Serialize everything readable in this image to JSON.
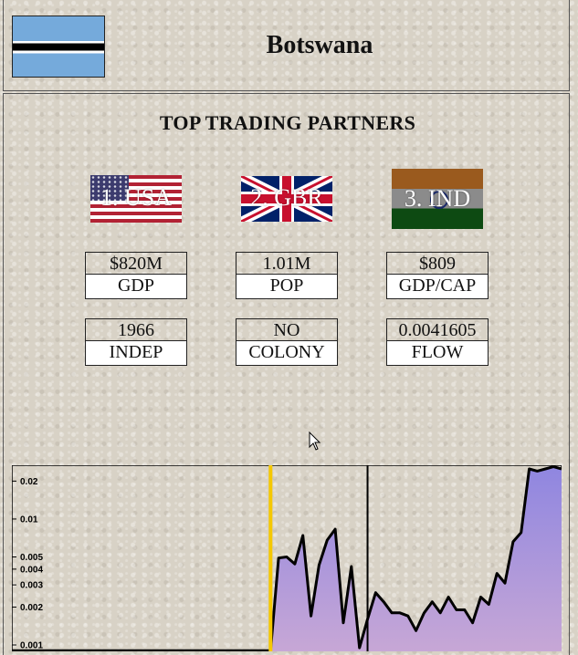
{
  "country": {
    "name": "Botswana",
    "flag_icon": "botswana-flag-icon"
  },
  "section": {
    "title": "TOP TRADING PARTNERS"
  },
  "partners": [
    {
      "label": "1. USA",
      "flag_icon": "usa-flag-icon"
    },
    {
      "label": "2. GBR",
      "flag_icon": "uk-flag-icon"
    },
    {
      "label": "3. IND",
      "flag_icon": "india-flag-icon"
    }
  ],
  "stats": [
    {
      "value": "$820M",
      "label": "GDP"
    },
    {
      "value": "1.01M",
      "label": "POP"
    },
    {
      "value": "$809",
      "label": "GDP/CAP"
    },
    {
      "value": "1966",
      "label": "INDEP"
    },
    {
      "value": "NO",
      "label": "COLONY"
    },
    {
      "value": "0.0041605",
      "label": "FLOW"
    }
  ],
  "colors": {
    "fill_top": "#8f86e0",
    "fill_bottom": "#c7a7d6",
    "highlight_line": "#f5c800",
    "line": "#000000"
  },
  "chart_data": {
    "type": "area",
    "yscale": "log",
    "ylim": [
      0.001,
      0.025
    ],
    "yticks": [
      "0.02",
      "0.01",
      "0.005",
      "0.004",
      "0.003",
      "0.002",
      "0.001"
    ],
    "ytick_values": [
      0.02,
      0.01,
      0.005,
      0.004,
      0.003,
      0.002,
      0.001
    ],
    "series_values": [
      0.0009,
      0.0009,
      0.0009,
      0.0009,
      0.0009,
      0.0009,
      0.0009,
      0.0009,
      0.0009,
      0.0009,
      0.0009,
      0.0009,
      0.0009,
      0.0009,
      0.0009,
      0.0009,
      0.0009,
      0.0009,
      0.0009,
      0.0009,
      0.0009,
      0.0009,
      0.0009,
      0.0009,
      0.0009,
      0.0009,
      0.0009,
      0.0009,
      0.0009,
      0.0009,
      0.0009,
      0.0009,
      0.0009,
      0.0049,
      0.005,
      0.0044,
      0.0074,
      0.0017,
      0.0043,
      0.0068,
      0.0083,
      0.0015,
      0.0042,
      0.00095,
      0.0016,
      0.0026,
      0.0022,
      0.0018,
      0.0018,
      0.0017,
      0.0013,
      0.0018,
      0.0022,
      0.0018,
      0.0024,
      0.0019,
      0.0019,
      0.0015,
      0.0024,
      0.0021,
      0.0037,
      0.0031,
      0.0066,
      0.0078,
      0.025,
      0.024,
      0.025,
      0.026,
      0.025
    ],
    "highlight_index": 32,
    "marker_index": 44
  }
}
